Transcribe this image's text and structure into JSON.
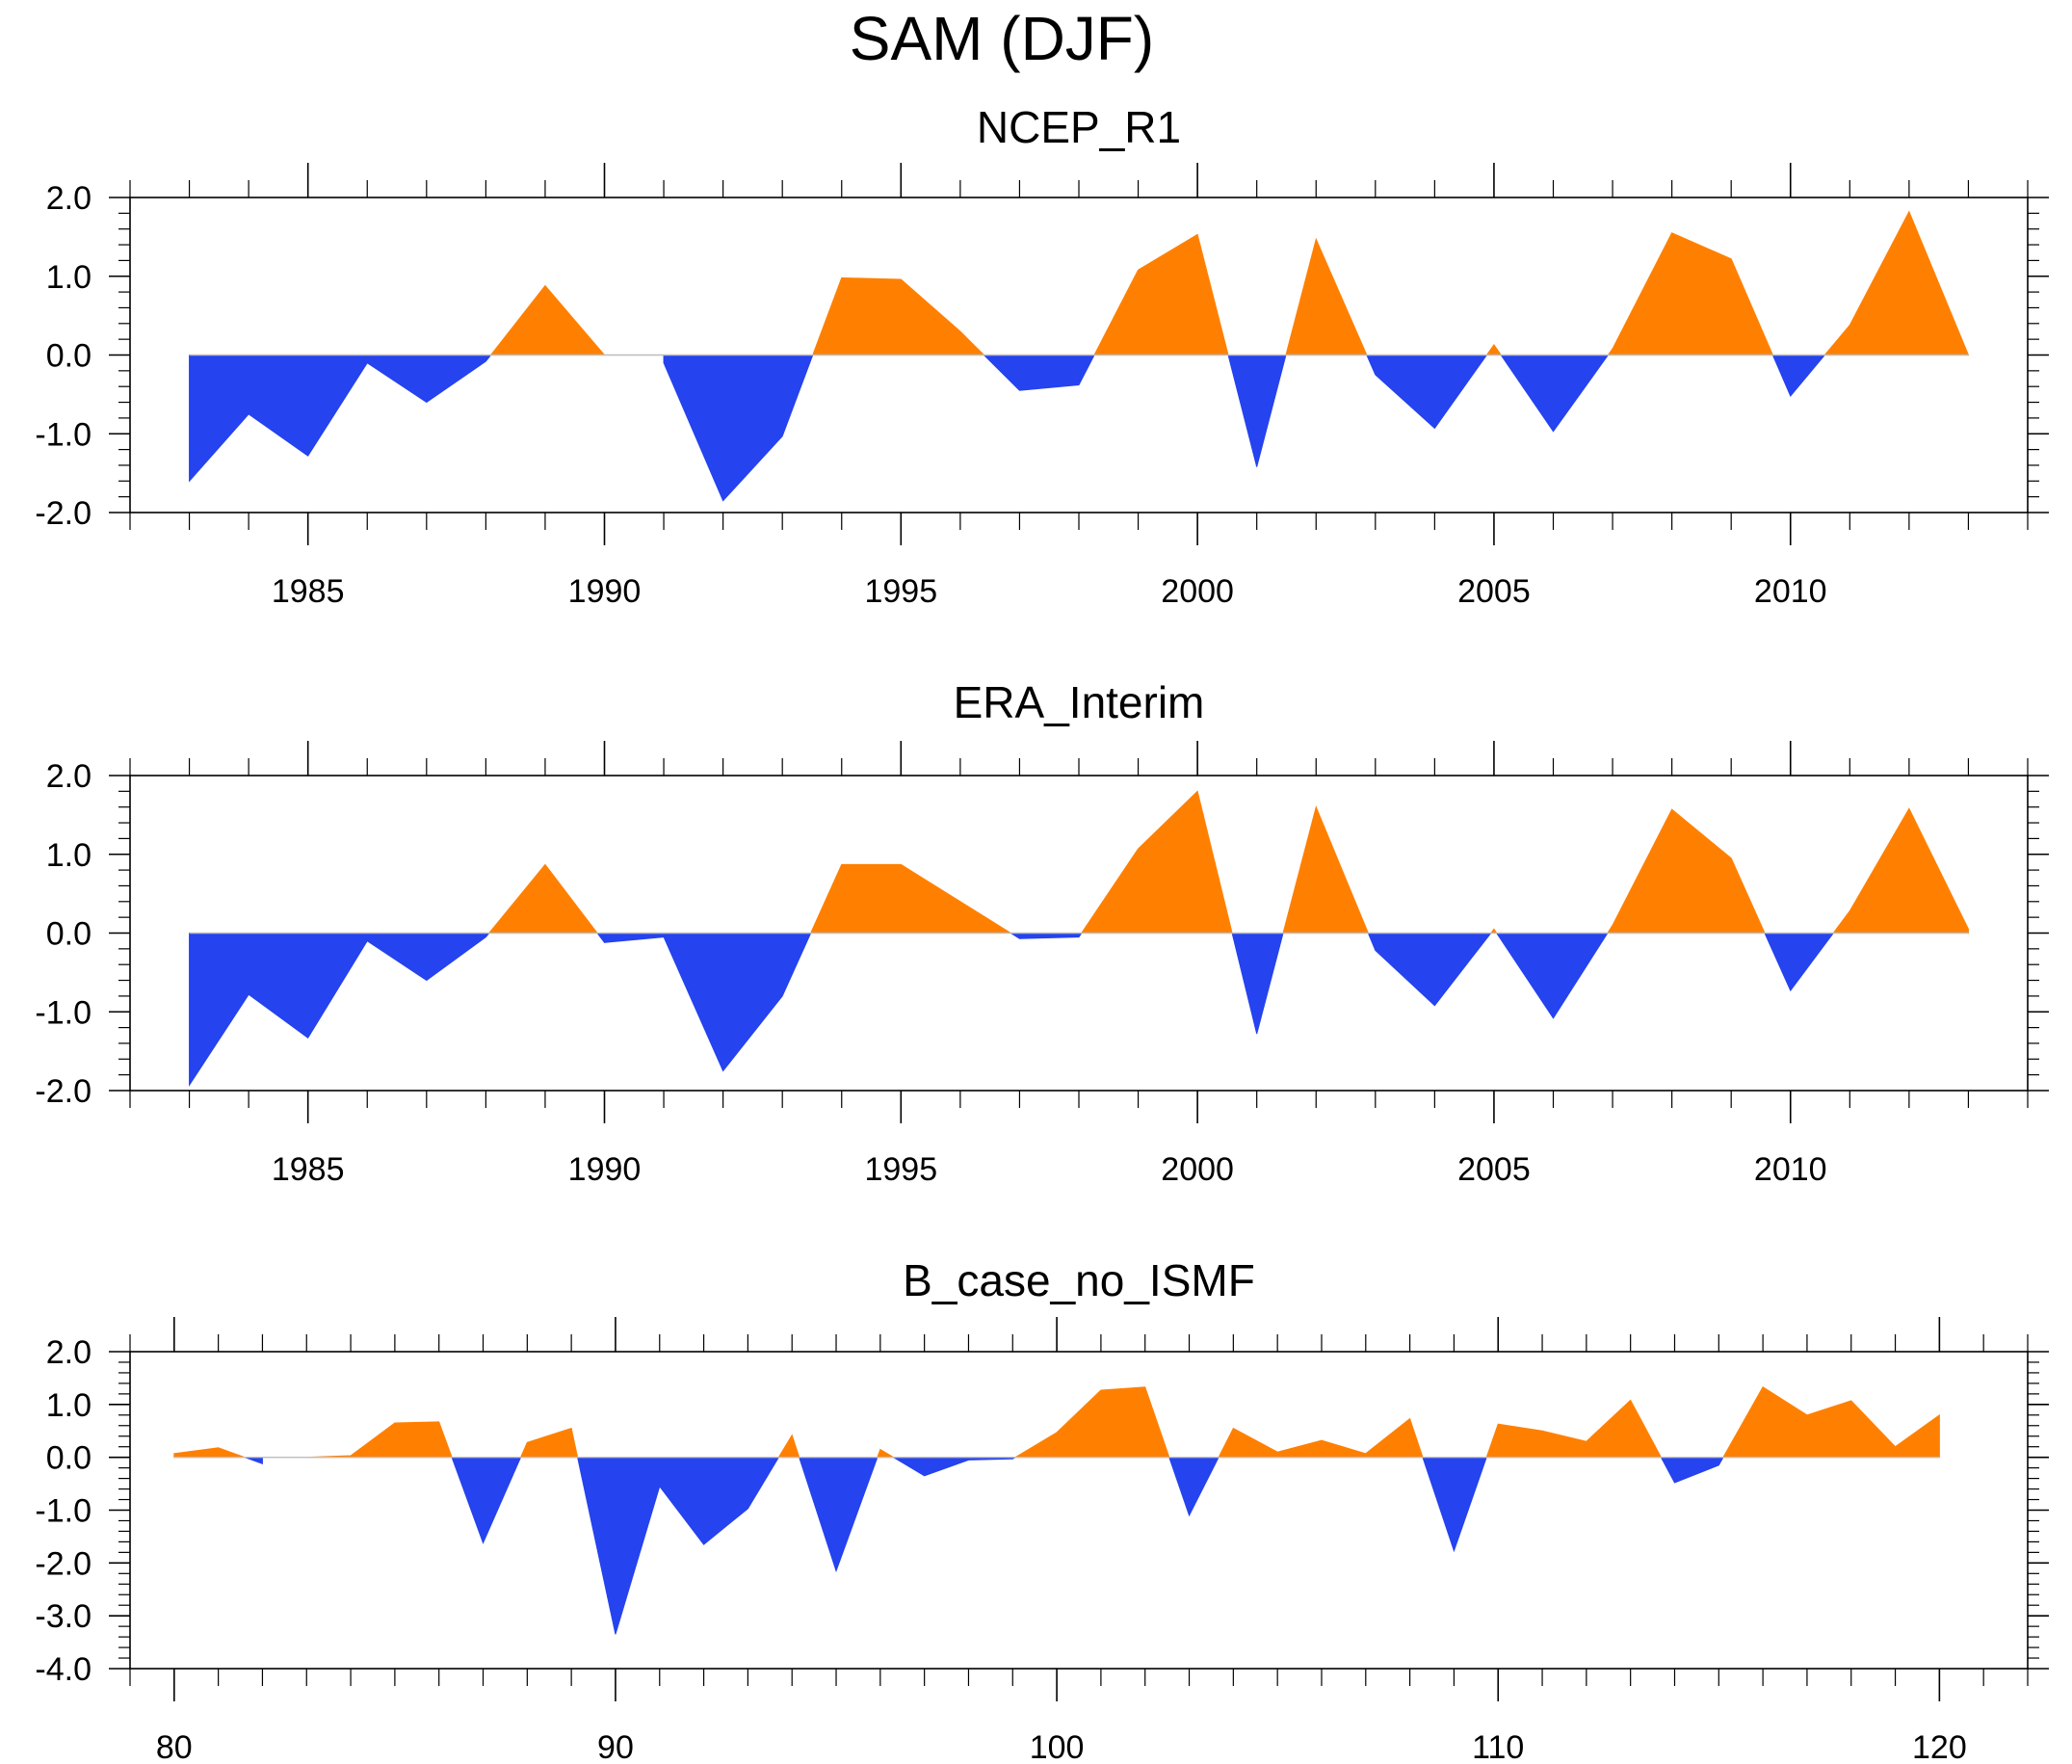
{
  "title": "SAM (DJF)",
  "colors": {
    "positive": "#ff8000",
    "negative": "#2543ee"
  },
  "chart_data": [
    {
      "type": "area",
      "title": "NCEP_R1",
      "xlim": [
        1982,
        2014
      ],
      "ylim": [
        -2.0,
        2.0
      ],
      "yticks": [
        "-2.0",
        "-1.0",
        "0.0",
        "1.0",
        "2.0"
      ],
      "xticks": [
        1985,
        1990,
        1995,
        2000,
        2005,
        2010
      ],
      "x": [
        1983,
        1984,
        1985,
        1986,
        1987,
        1988,
        1989,
        1990,
        1991,
        1992,
        1993,
        1994,
        1995,
        1996,
        1997,
        1998,
        1999,
        2000,
        2001,
        2002,
        2003,
        2004,
        2005,
        2006,
        2007,
        2008,
        2009,
        2010,
        2011,
        2012,
        2013
      ],
      "values": [
        -1.6,
        -0.75,
        -1.28,
        -0.1,
        -0.6,
        -0.08,
        0.88,
        0.0,
        -0.1,
        -1.85,
        -1.03,
        0.98,
        0.96,
        0.3,
        -0.45,
        -0.38,
        1.08,
        1.53,
        -1.42,
        1.47,
        -0.25,
        -0.93,
        0.13,
        -0.97,
        0.08,
        1.55,
        1.22,
        -0.52,
        0.38,
        1.82,
        0.0
      ]
    },
    {
      "type": "area",
      "title": "ERA_Interim",
      "xlim": [
        1982,
        2014
      ],
      "ylim": [
        -2.0,
        2.0
      ],
      "yticks": [
        "-2.0",
        "-1.0",
        "0.0",
        "1.0",
        "2.0"
      ],
      "xticks": [
        1985,
        1990,
        1995,
        2000,
        2005,
        2010
      ],
      "x": [
        1983,
        1984,
        1985,
        1986,
        1987,
        1988,
        1989,
        1990,
        1991,
        1992,
        1993,
        1994,
        1995,
        1996,
        1997,
        1998,
        1999,
        2000,
        2001,
        2002,
        2003,
        2004,
        2005,
        2006,
        2007,
        2008,
        2009,
        2010,
        2011,
        2012,
        2013
      ],
      "values": [
        -1.93,
        -0.78,
        -1.33,
        -0.1,
        -0.6,
        -0.05,
        0.87,
        -0.12,
        -0.05,
        -1.75,
        -0.8,
        0.87,
        0.87,
        0.4,
        -0.07,
        -0.05,
        1.07,
        1.8,
        -1.28,
        1.6,
        -0.22,
        -0.92,
        0.05,
        -1.08,
        0.1,
        1.57,
        0.95,
        -0.73,
        0.28,
        1.58,
        0.05
      ]
    },
    {
      "type": "area",
      "title": "B_case_no_ISMF",
      "xlim": [
        79,
        122
      ],
      "ylim": [
        -4.0,
        2.0
      ],
      "yticks": [
        "-4.0",
        "-3.0",
        "-2.0",
        "-1.0",
        "0.0",
        "1.0",
        "2.0"
      ],
      "xticks": [
        80,
        90,
        100,
        110,
        120
      ],
      "x": [
        80,
        81,
        82,
        83,
        84,
        85,
        86,
        87,
        88,
        89,
        90,
        91,
        92,
        93,
        94,
        95,
        96,
        97,
        98,
        99,
        100,
        101,
        102,
        103,
        104,
        105,
        106,
        107,
        108,
        109,
        110,
        111,
        112,
        113,
        114,
        115,
        116,
        117,
        118,
        119,
        120
      ],
      "values": [
        0.07,
        0.18,
        -0.12,
        0.0,
        0.03,
        0.65,
        0.67,
        -1.62,
        0.28,
        0.55,
        -3.35,
        -0.55,
        -1.65,
        -0.97,
        0.42,
        -2.15,
        0.15,
        -0.35,
        -0.05,
        -0.03,
        0.47,
        1.27,
        1.33,
        -1.1,
        0.55,
        0.1,
        0.32,
        0.07,
        0.73,
        -1.77,
        0.63,
        0.5,
        0.3,
        1.08,
        -0.48,
        -0.15,
        1.33,
        0.8,
        1.07,
        0.2,
        0.8
      ]
    }
  ]
}
